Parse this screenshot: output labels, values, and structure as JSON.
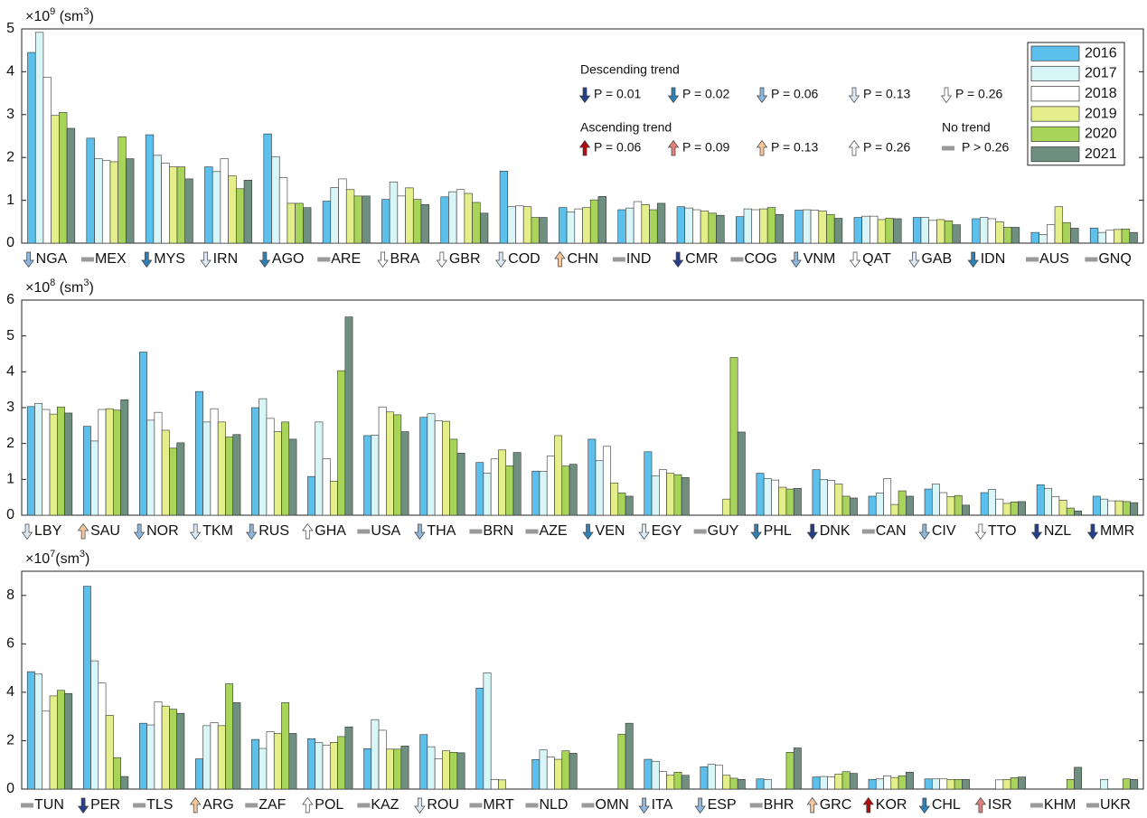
{
  "chart_data": [
    {
      "type": "bar",
      "ylabel": [
        "×10",
        "9",
        " (sm",
        "3",
        ")"
      ],
      "ylim": [
        0,
        5
      ],
      "yticks": [
        0,
        1,
        2,
        3,
        4,
        5
      ],
      "categories": [
        "NGA",
        "MEX",
        "MYS",
        "IRN",
        "AGO",
        "ARE",
        "BRA",
        "GBR",
        "COD",
        "CHN",
        "IND",
        "CMR",
        "COG",
        "VNM",
        "QAT",
        "GAB",
        "IDN",
        "AUS",
        "GNQ"
      ],
      "trend_direction": [
        "down",
        "none",
        "down",
        "down",
        "down",
        "none",
        "down",
        "down",
        "down",
        "up",
        "none",
        "down",
        "none",
        "down",
        "down",
        "down",
        "down",
        "none",
        "none"
      ],
      "trend_p": [
        0.06,
        null,
        0.02,
        0.13,
        0.02,
        null,
        0.26,
        0.26,
        0.13,
        0.13,
        null,
        0.01,
        null,
        0.06,
        0.26,
        0.13,
        0.02,
        null,
        null
      ],
      "series": [
        {
          "name": "2016",
          "color": "#5bc0eb",
          "values": [
            4.45,
            2.45,
            2.53,
            1.78,
            2.55,
            0.98,
            1.02,
            1.08,
            1.68,
            0.83,
            0.78,
            0.85,
            0.62,
            0.77,
            0.6,
            0.6,
            0.57,
            0.25,
            0.35
          ]
        },
        {
          "name": "2017",
          "color": "#d8f6f8",
          "values": [
            4.92,
            1.97,
            2.05,
            1.67,
            2.02,
            1.3,
            1.43,
            1.2,
            0.85,
            0.73,
            0.82,
            0.82,
            0.8,
            0.78,
            0.63,
            0.6,
            0.6,
            0.2,
            0.25
          ]
        },
        {
          "name": "2018",
          "color": "#ffffff",
          "values": [
            3.87,
            1.93,
            1.87,
            1.97,
            1.53,
            1.5,
            1.1,
            1.25,
            0.87,
            0.8,
            0.97,
            0.78,
            0.78,
            0.77,
            0.63,
            0.53,
            0.57,
            0.43,
            0.3
          ]
        },
        {
          "name": "2019",
          "color": "#e4ee8a",
          "values": [
            2.98,
            1.9,
            1.78,
            1.57,
            0.93,
            1.25,
            1.29,
            1.16,
            0.85,
            0.83,
            0.9,
            0.75,
            0.8,
            0.75,
            0.55,
            0.55,
            0.5,
            0.85,
            0.32
          ]
        },
        {
          "name": "2020",
          "color": "#a8d45a",
          "values": [
            3.05,
            2.48,
            1.78,
            1.27,
            0.93,
            1.1,
            1.02,
            0.95,
            0.6,
            1.01,
            0.78,
            0.7,
            0.83,
            0.67,
            0.58,
            0.52,
            0.37,
            0.48,
            0.33
          ]
        },
        {
          "name": "2021",
          "color": "#6f8f80",
          "values": [
            2.68,
            1.97,
            1.5,
            1.47,
            0.83,
            1.1,
            0.9,
            0.7,
            0.6,
            1.09,
            0.93,
            0.65,
            0.67,
            0.58,
            0.57,
            0.43,
            0.37,
            0.35,
            0.25
          ]
        }
      ]
    },
    {
      "type": "bar",
      "ylabel": [
        "×10",
        "8",
        " (sm",
        "3",
        ")"
      ],
      "ylim": [
        0,
        6
      ],
      "yticks": [
        0,
        1,
        2,
        3,
        4,
        5,
        6
      ],
      "categories": [
        "LBY",
        "SAU",
        "NOR",
        "TKM",
        "RUS",
        "GHA",
        "USA",
        "THA",
        "BRN",
        "AZE",
        "VEN",
        "EGY",
        "GUY",
        "PHL",
        "DNK",
        "CAN",
        "CIV",
        "TTO",
        "NZL",
        "MMR"
      ],
      "trend_direction": [
        "down",
        "up",
        "down",
        "down",
        "down",
        "up",
        "none",
        "down",
        "none",
        "none",
        "down",
        "down",
        "none",
        "down",
        "down",
        "none",
        "down",
        "down",
        "down",
        "down"
      ],
      "trend_p": [
        0.13,
        0.13,
        0.06,
        0.13,
        0.06,
        0.26,
        null,
        0.06,
        null,
        null,
        0.02,
        0.13,
        null,
        0.02,
        0.01,
        null,
        0.06,
        0.26,
        0.01,
        0.01
      ],
      "series": [
        {
          "values": [
            3.03,
            2.48,
            4.55,
            3.45,
            3.0,
            1.08,
            2.22,
            2.73,
            1.47,
            1.23,
            2.12,
            1.77,
            null,
            1.17,
            1.27,
            0.53,
            0.73,
            0.63,
            0.85,
            0.53
          ]
        },
        {
          "values": [
            3.12,
            2.07,
            2.65,
            2.6,
            3.25,
            2.6,
            2.23,
            2.83,
            1.17,
            1.22,
            1.52,
            1.1,
            null,
            1.02,
            1.0,
            0.62,
            0.87,
            0.72,
            0.75,
            0.45
          ]
        },
        {
          "values": [
            2.95,
            2.95,
            2.87,
            2.97,
            2.7,
            1.58,
            3.02,
            2.63,
            1.57,
            1.65,
            1.92,
            1.27,
            null,
            0.98,
            0.97,
            1.02,
            0.63,
            0.45,
            0.52,
            0.4
          ]
        },
        {
          "values": [
            2.82,
            2.97,
            2.37,
            2.6,
            2.33,
            0.95,
            2.88,
            2.62,
            1.82,
            2.22,
            0.9,
            1.17,
            0.45,
            0.78,
            0.87,
            0.3,
            0.52,
            0.33,
            0.42,
            0.4
          ]
        },
        {
          "values": [
            3.02,
            2.93,
            1.87,
            2.18,
            2.6,
            4.03,
            2.8,
            2.12,
            1.38,
            1.37,
            0.62,
            1.13,
            4.4,
            0.73,
            0.53,
            0.68,
            0.55,
            0.37,
            0.2,
            0.38
          ]
        },
        {
          "values": [
            2.85,
            3.22,
            2.02,
            2.25,
            2.12,
            5.53,
            2.33,
            1.73,
            1.75,
            1.42,
            0.53,
            1.05,
            2.32,
            0.75,
            0.48,
            0.53,
            0.28,
            0.38,
            0.12,
            0.35
          ]
        }
      ]
    },
    {
      "type": "bar",
      "ylabel": [
        "×10",
        "7",
        "(sm",
        "3",
        ")"
      ],
      "ylim": [
        0,
        9
      ],
      "yticks": [
        0,
        2,
        4,
        6,
        8
      ],
      "categories": [
        "TUN",
        "PER",
        "TLS",
        "ARG",
        "ZAF",
        "POL",
        "KAZ",
        "ROU",
        "MRT",
        "NLD",
        "OMN",
        "ITA",
        "ESP",
        "BHR",
        "GRC",
        "KOR",
        "CHL",
        "ISR",
        "KHM",
        "UKR"
      ],
      "trend_direction": [
        "none",
        "down",
        "none",
        "up",
        "none",
        "up",
        "none",
        "down",
        "none",
        "none",
        "none",
        "down",
        "down",
        "none",
        "up",
        "up",
        "down",
        "up",
        "none",
        "none"
      ],
      "trend_p": [
        null,
        0.01,
        null,
        0.13,
        null,
        0.26,
        null,
        0.13,
        null,
        null,
        null,
        0.06,
        0.06,
        null,
        0.13,
        0.06,
        0.02,
        0.09,
        null,
        null
      ],
      "series": [
        {
          "values": [
            4.85,
            8.38,
            2.72,
            1.25,
            2.05,
            2.08,
            1.67,
            2.25,
            4.17,
            1.22,
            null,
            1.23,
            0.92,
            0.42,
            0.5,
            0.4,
            0.42,
            null,
            null,
            null
          ]
        },
        {
          "values": [
            4.75,
            5.3,
            2.65,
            2.62,
            1.68,
            1.92,
            2.87,
            1.75,
            4.8,
            1.62,
            null,
            1.15,
            1.02,
            0.4,
            0.52,
            0.42,
            0.42,
            null,
            null,
            0.4
          ]
        },
        {
          "values": [
            3.22,
            4.38,
            3.6,
            2.75,
            2.37,
            1.82,
            2.43,
            1.25,
            0.4,
            1.32,
            null,
            0.72,
            0.98,
            null,
            0.5,
            0.55,
            0.42,
            0.38,
            null,
            null
          ]
        },
        {
          "values": [
            3.85,
            3.05,
            3.43,
            2.62,
            2.3,
            1.93,
            1.65,
            1.58,
            0.38,
            1.23,
            null,
            0.57,
            0.57,
            null,
            0.62,
            0.48,
            0.4,
            0.4,
            null,
            null
          ]
        },
        {
          "values": [
            4.08,
            1.3,
            3.3,
            4.35,
            3.57,
            2.17,
            1.65,
            1.52,
            null,
            1.58,
            2.27,
            0.7,
            0.45,
            1.52,
            0.72,
            0.55,
            0.4,
            0.47,
            0.4,
            0.42
          ]
        },
        {
          "values": [
            3.95,
            0.52,
            3.13,
            3.57,
            2.3,
            2.57,
            1.78,
            1.5,
            null,
            1.48,
            2.72,
            0.57,
            0.4,
            1.7,
            0.65,
            0.7,
            0.4,
            0.5,
            0.9,
            0.4
          ]
        }
      ]
    }
  ],
  "trend_legend": {
    "descending": {
      "title": "Descending trend",
      "items": [
        {
          "value": 0.01,
          "label": "P = 0.01",
          "color": "#233f8c"
        },
        {
          "value": 0.02,
          "label": "P = 0.02",
          "color": "#2e80b8"
        },
        {
          "value": 0.06,
          "label": "P = 0.06",
          "color": "#8db6dc"
        },
        {
          "value": 0.13,
          "label": "P = 0.13",
          "color": "#dbe7f4"
        },
        {
          "value": 0.26,
          "label": "P = 0.26",
          "color": "#ffffff"
        }
      ]
    },
    "ascending": {
      "title": "Ascending trend",
      "items": [
        {
          "value": 0.06,
          "label": "P = 0.06",
          "color": "#b00a0a"
        },
        {
          "value": 0.09,
          "label": "P = 0.09",
          "color": "#e3807a"
        },
        {
          "value": 0.13,
          "label": "P = 0.13",
          "color": "#f6c79b"
        },
        {
          "value": 0.26,
          "label": "P = 0.26",
          "color": "#ffffff"
        }
      ]
    },
    "none": {
      "title": "No trend",
      "label": "P > 0.26",
      "color": "#9a9a9a"
    }
  }
}
